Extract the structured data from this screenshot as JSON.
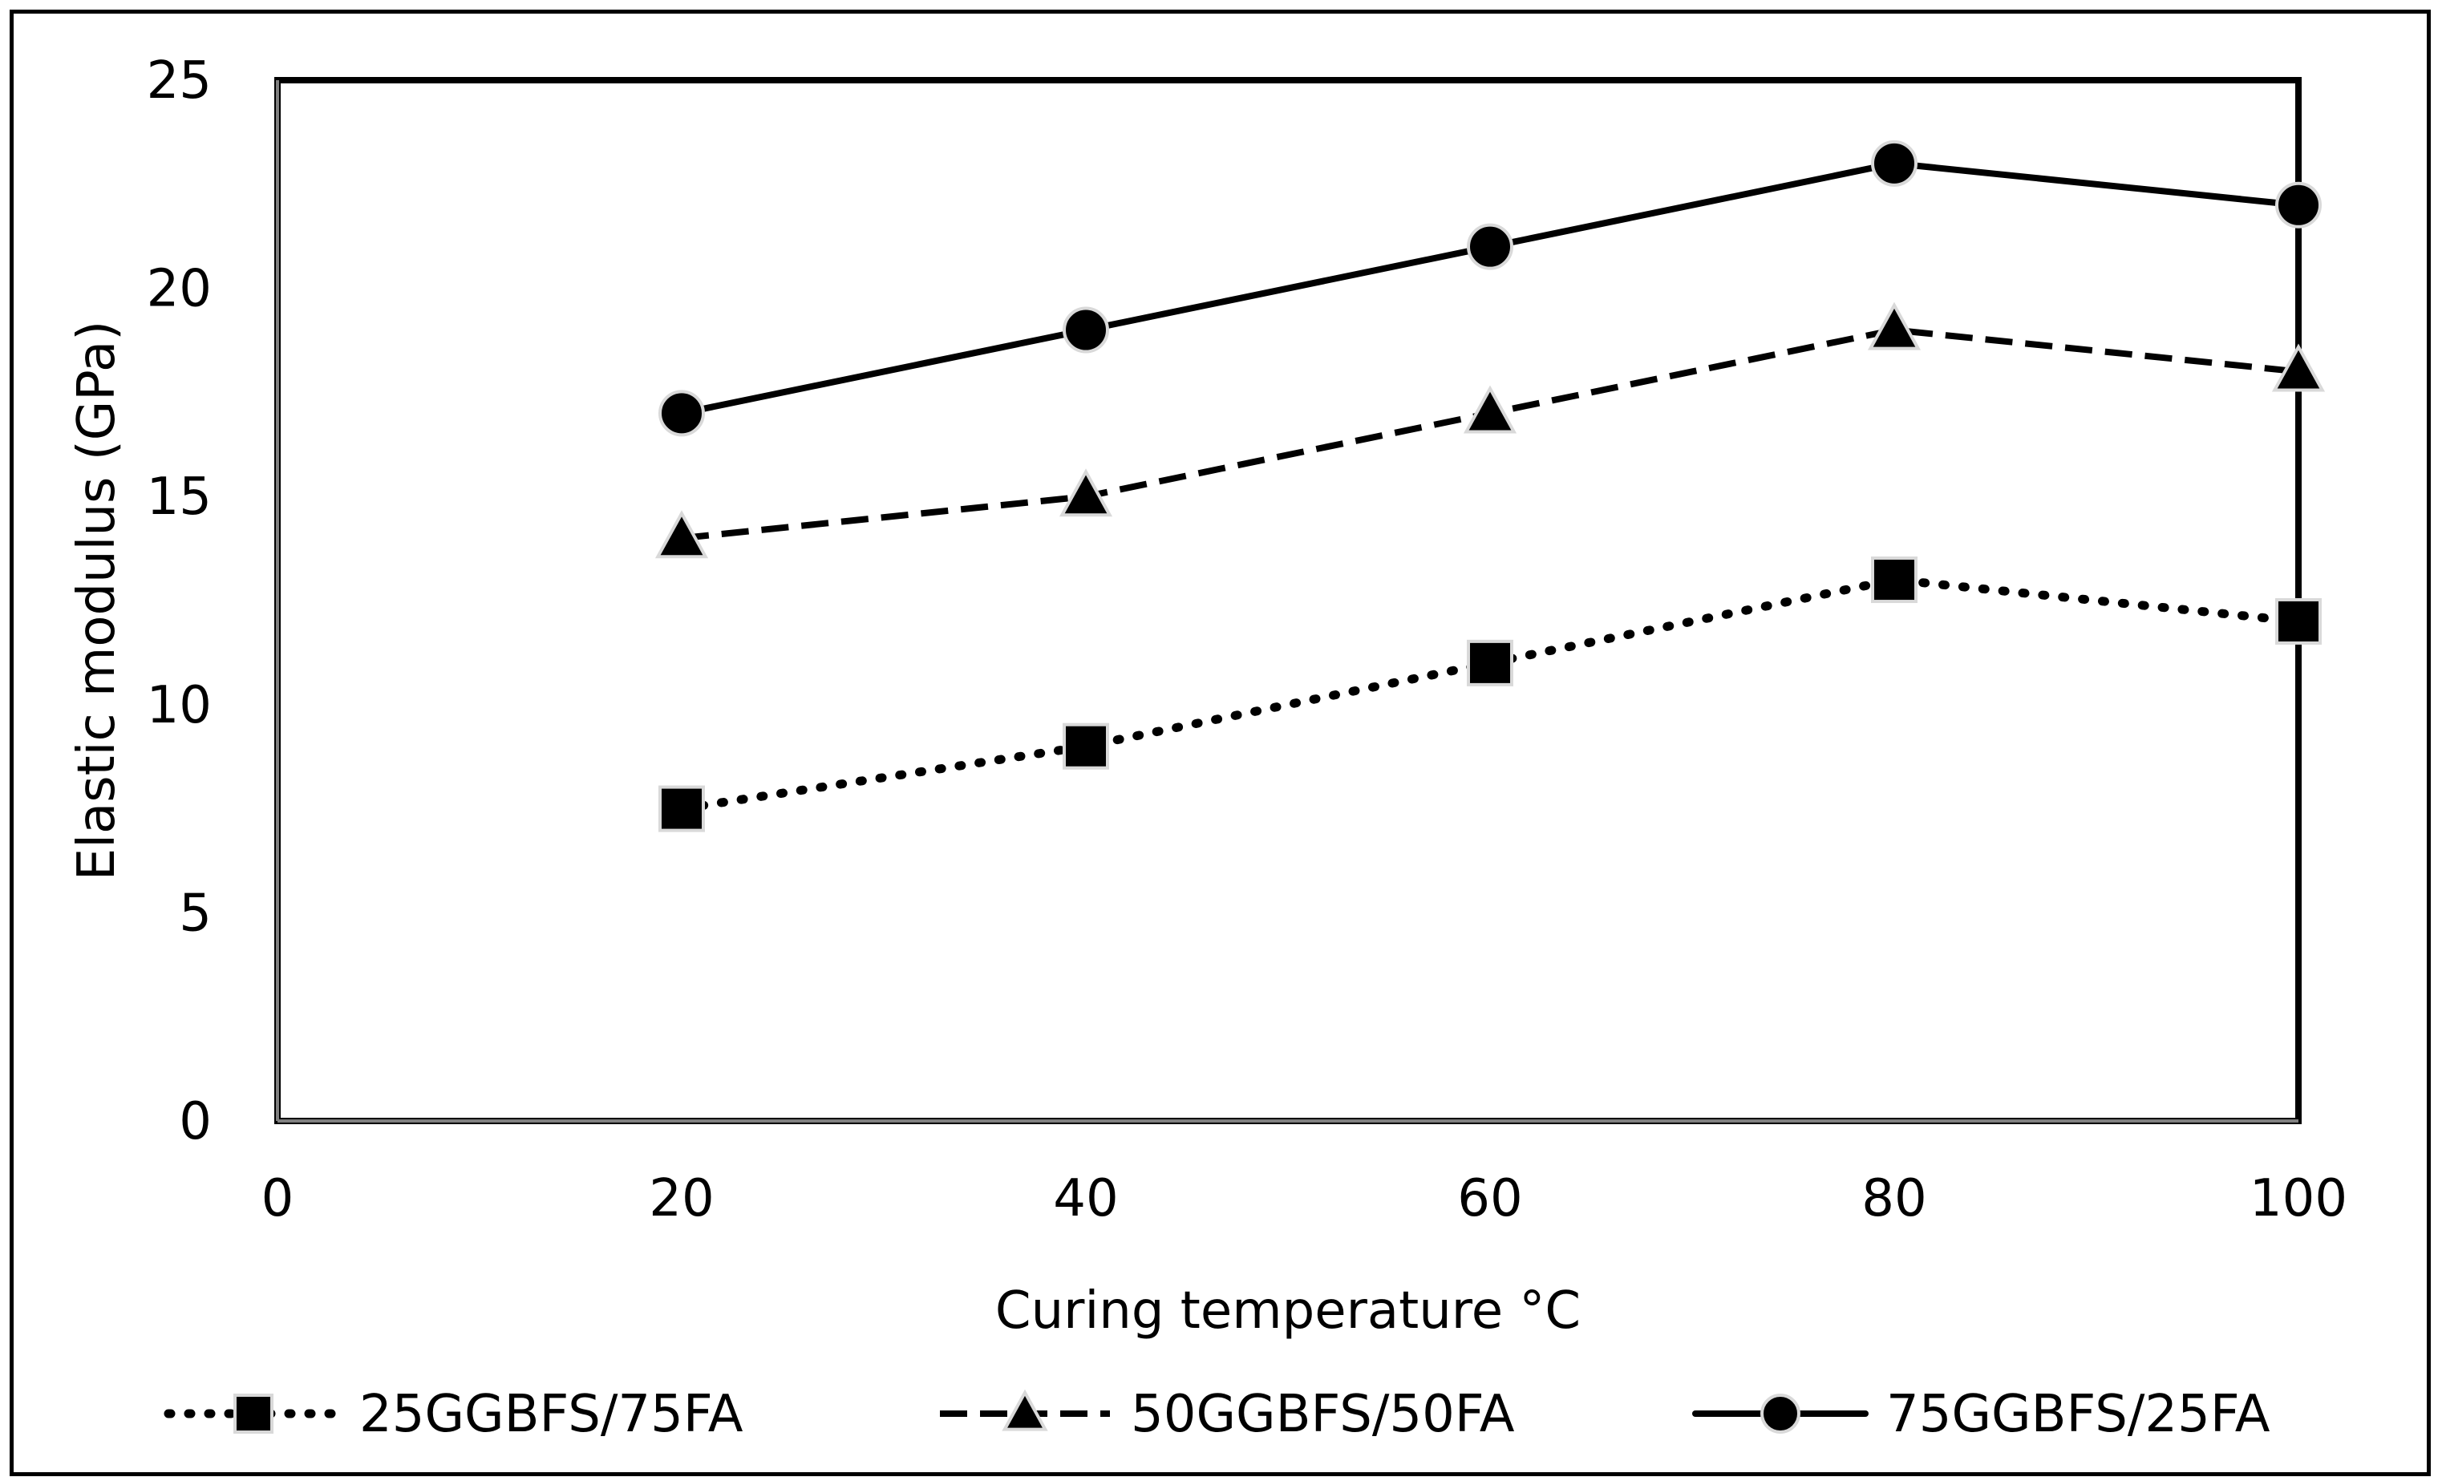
{
  "chart_data": {
    "type": "line",
    "title": "",
    "xlabel": "Curing temperature °C",
    "ylabel": "Elastic modulus (GPa)",
    "xlim": [
      0,
      100
    ],
    "ylim": [
      0,
      25
    ],
    "xticks": [
      0,
      20,
      40,
      60,
      80,
      100
    ],
    "yticks": [
      0,
      5,
      10,
      15,
      20,
      25
    ],
    "x": [
      20,
      40,
      60,
      80,
      100
    ],
    "grid": false,
    "legend_position": "bottom",
    "series": [
      {
        "name": "25GGBFS/75FA",
        "values": [
          7.5,
          9,
          11,
          13,
          12
        ],
        "line_style": "dotted",
        "marker": "square",
        "color": "#000000"
      },
      {
        "name": "50GGBFS/50FA",
        "values": [
          14,
          15,
          17,
          19,
          18
        ],
        "line_style": "dashed",
        "marker": "triangle",
        "color": "#000000"
      },
      {
        "name": "75GGBFS/25FA",
        "values": [
          17,
          19,
          21,
          23,
          22
        ],
        "line_style": "solid",
        "marker": "circle",
        "color": "#000000"
      }
    ]
  }
}
